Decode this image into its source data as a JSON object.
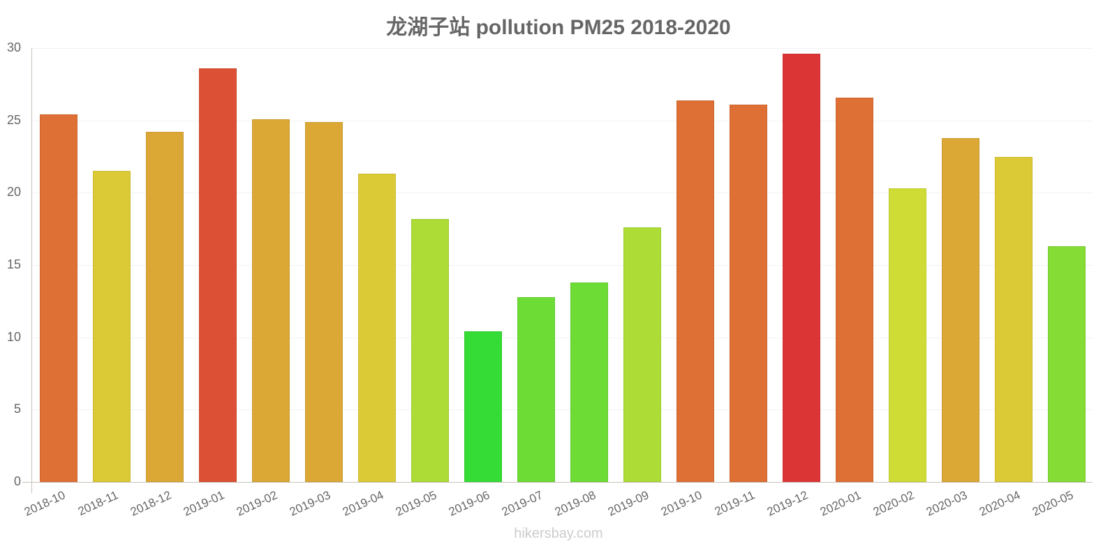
{
  "chart_data": {
    "type": "bar",
    "title": "龙湖子站 pollution PM25 2018-2020",
    "xlabel": "",
    "ylabel": "",
    "ylim": [
      0,
      30
    ],
    "yticks": [
      0,
      5,
      10,
      15,
      20,
      25,
      30
    ],
    "grid": true,
    "legend": null,
    "categories": [
      "2018-10",
      "2018-11",
      "2018-12",
      "2019-01",
      "2019-02",
      "2019-03",
      "2019-04",
      "2019-05",
      "2019-06",
      "2019-07",
      "2019-08",
      "2019-09",
      "2019-10",
      "2019-11",
      "2019-12",
      "2020-01",
      "2020-02",
      "2020-03",
      "2020-04",
      "2020-05"
    ],
    "values": [
      25.4,
      21.5,
      24.2,
      28.6,
      25.1,
      24.9,
      21.3,
      18.2,
      10.4,
      12.8,
      13.8,
      17.6,
      26.4,
      26.1,
      29.6,
      26.6,
      20.3,
      23.8,
      22.5,
      16.3
    ],
    "colors": [
      "#de6f35",
      "#dbca35",
      "#dca835",
      "#dc5035",
      "#dca835",
      "#dca835",
      "#dbca35",
      "#acdc35",
      "#35dc35",
      "#6ddc35",
      "#6ddc35",
      "#acdc35",
      "#de6f35",
      "#de6f35",
      "#dc3535",
      "#de6f35",
      "#cfdc35",
      "#dca835",
      "#dbca35",
      "#84dc35"
    ]
  },
  "watermark": "hikersbay.com"
}
